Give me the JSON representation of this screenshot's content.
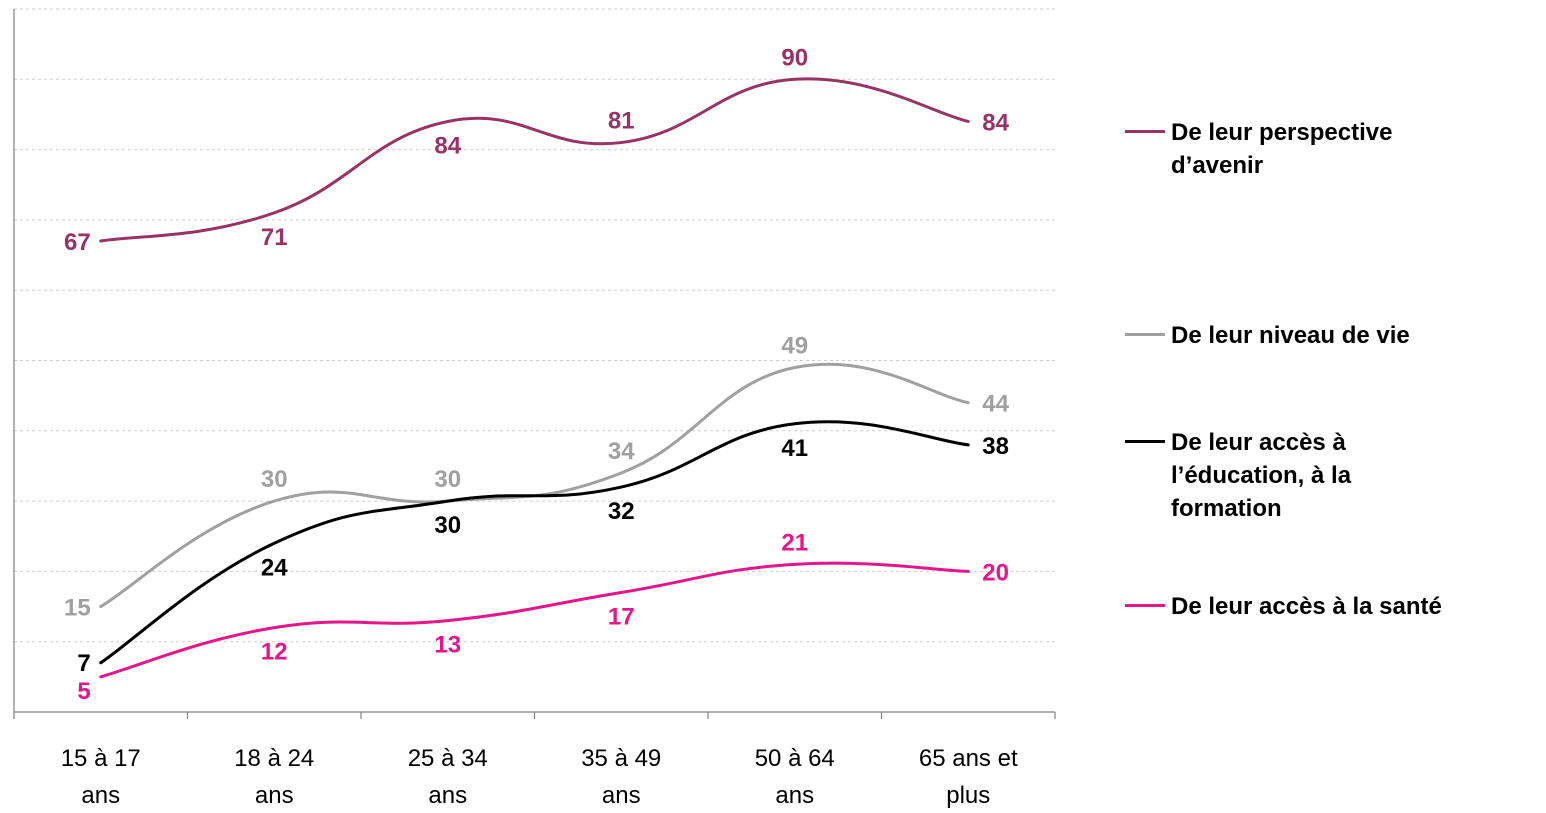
{
  "chart_data": {
    "type": "line",
    "categories": [
      [
        "15 à 17",
        "ans"
      ],
      [
        "18 à 24",
        "ans"
      ],
      [
        "25 à 34",
        "ans"
      ],
      [
        "35 à 49",
        "ans"
      ],
      [
        "50 à 64",
        "ans"
      ],
      [
        "65 ans et",
        "plus"
      ]
    ],
    "ylim": [
      0,
      100
    ],
    "grid": true,
    "legend_position": "right",
    "series": [
      {
        "name": "De leur perspective d’avenir",
        "color": "#993366",
        "values": [
          67,
          71,
          84,
          81,
          90,
          84
        ]
      },
      {
        "name": "De leur niveau de vie",
        "color": "#A0A0A0",
        "values": [
          15,
          30,
          30,
          34,
          49,
          44
        ]
      },
      {
        "name": "De leur accès à l’éducation, à la formation",
        "color": "#000000",
        "values": [
          7,
          24,
          30,
          32,
          41,
          38
        ]
      },
      {
        "name": "De leur accès à la santé",
        "color": "#E6158C",
        "values": [
          5,
          12,
          13,
          17,
          21,
          20
        ]
      }
    ]
  },
  "legend": [
    {
      "lines": [
        "De leur perspective",
        "d’avenir"
      ],
      "color": "#993366"
    },
    {
      "lines": [
        "De leur niveau de vie"
      ],
      "color": "#A0A0A0"
    },
    {
      "lines": [
        "De leur accès à",
        "l’éducation, à la",
        "formation"
      ],
      "color": "#000000"
    },
    {
      "lines": [
        "De leur accès à la santé"
      ],
      "color": "#E6158C"
    }
  ]
}
